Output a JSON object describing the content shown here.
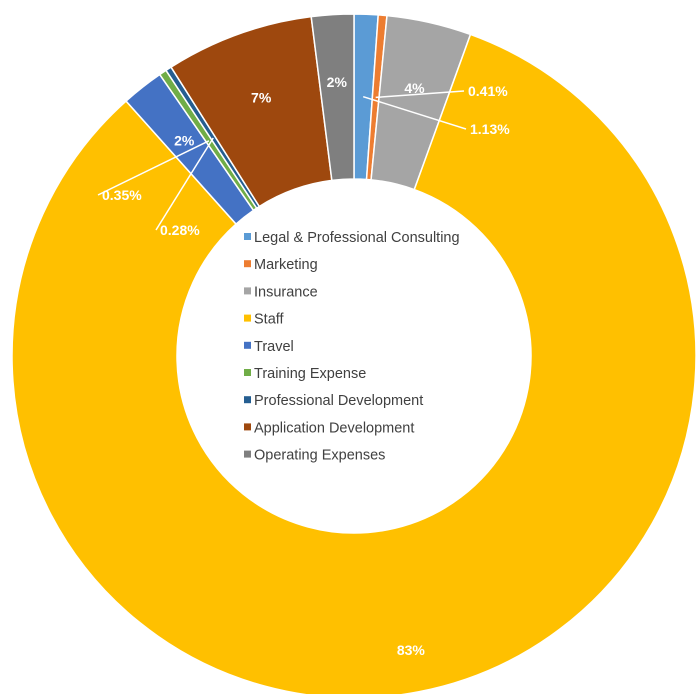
{
  "chart_data": {
    "type": "doughnut",
    "title": "",
    "legend_position": "center",
    "series": [
      {
        "name": "",
        "slices": [
          {
            "label": "Legal & Professional Consulting",
            "value": 1.13,
            "display": "1.13%",
            "color": "#5B9BD5"
          },
          {
            "label": "Marketing",
            "value": 0.41,
            "display": "0.41%",
            "color": "#ED7D31"
          },
          {
            "label": "Insurance",
            "value": 4,
            "display": "4%",
            "color": "#A5A5A5"
          },
          {
            "label": "Staff",
            "value": 83,
            "display": "83%",
            "color": "#FFC000"
          },
          {
            "label": "Travel",
            "value": 2,
            "display": "2%",
            "color": "#4472C4"
          },
          {
            "label": "Training Expense",
            "value": 0.35,
            "display": "0.35%",
            "color": "#70AD47"
          },
          {
            "label": "Professional Development",
            "value": 0.28,
            "display": "0.28%",
            "color": "#255E91"
          },
          {
            "label": "Application Development",
            "value": 7,
            "display": "7%",
            "color": "#9E480E"
          },
          {
            "label": "Operating Expenses",
            "value": 2,
            "display": "2%",
            "color": "#7F7F7F"
          }
        ]
      }
    ]
  }
}
